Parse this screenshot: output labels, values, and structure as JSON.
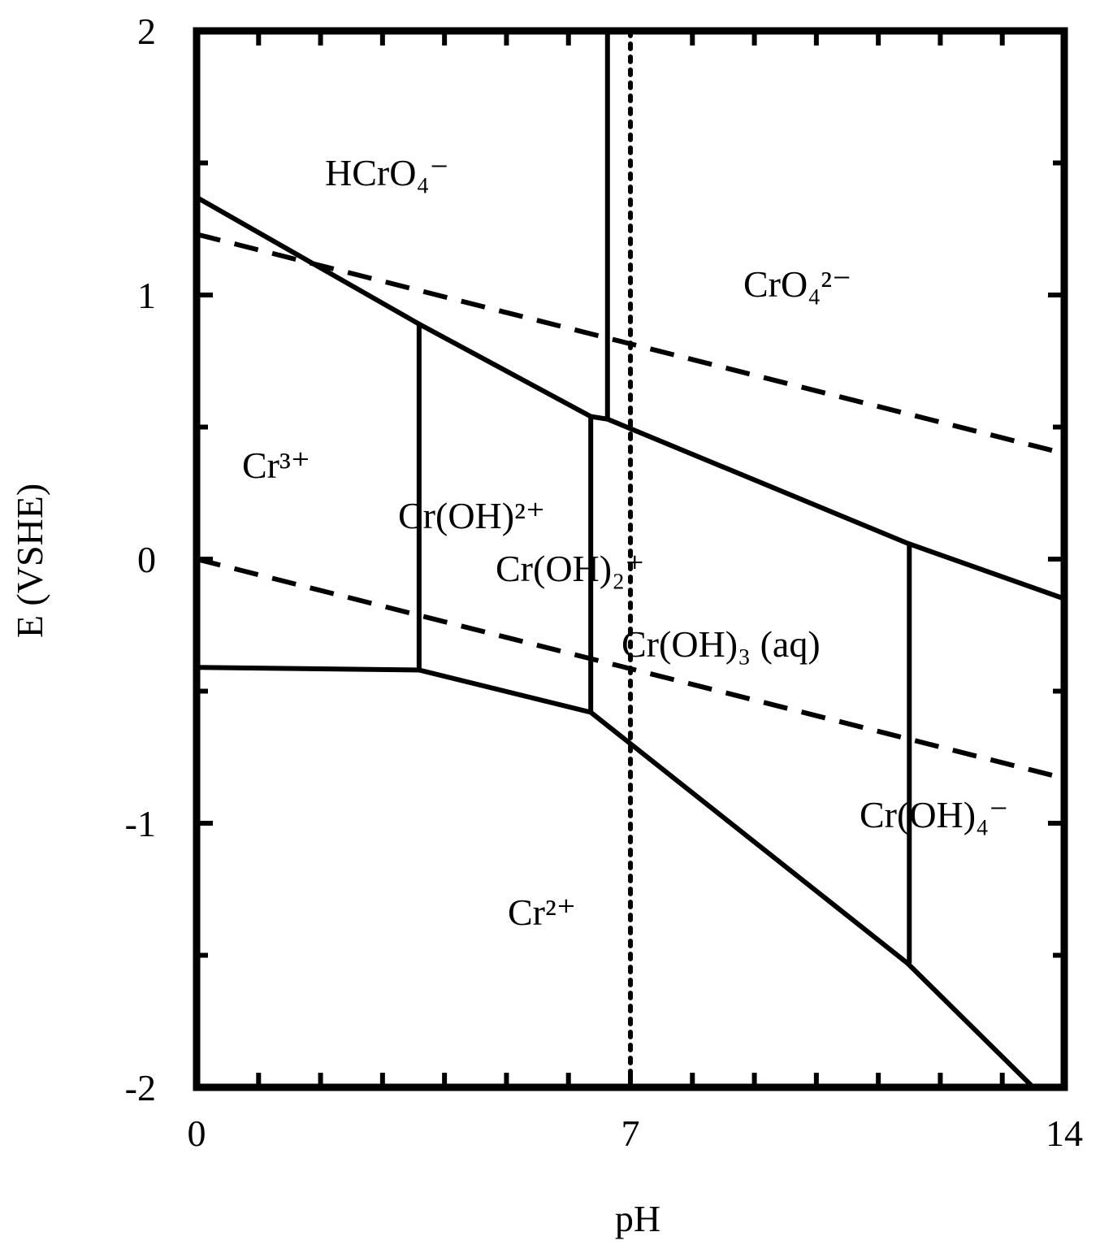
{
  "chart_data": {
    "type": "line",
    "xlabel": "pH",
    "ylabel": "E (VSHE)",
    "xlim": [
      0,
      14
    ],
    "ylim": [
      -2,
      2
    ],
    "xticks": [
      0,
      7,
      14
    ],
    "yticks": [
      -2,
      -1,
      0,
      1,
      2
    ],
    "xticks_minor": [
      1,
      2,
      3,
      4,
      5,
      6,
      8,
      9,
      10,
      11,
      12,
      13
    ],
    "yticks_minor": [
      -1.5,
      -0.5,
      0.5,
      1.5
    ],
    "grid": false,
    "series": [
      {
        "color": "#000000",
        "style": "solid",
        "x": [
          0,
          3.59,
          6.36,
          6.63,
          11.47,
          14
        ],
        "values": [
          1.37,
          0.89,
          0.54,
          0.53,
          0.06,
          -0.15
        ]
      },
      {
        "color": "#000000",
        "style": "solid",
        "x": [
          6.63,
          6.63
        ],
        "values": [
          2,
          0.53
        ]
      },
      {
        "color": "#000000",
        "style": "solid",
        "x": [
          3.59,
          3.59
        ],
        "values": [
          0.89,
          -0.42
        ]
      },
      {
        "color": "#000000",
        "style": "solid",
        "x": [
          6.36,
          6.36
        ],
        "values": [
          0.54,
          -0.58
        ]
      },
      {
        "color": "#000000",
        "style": "solid",
        "x": [
          11.5,
          11.5
        ],
        "values": [
          0.06,
          -1.53
        ]
      },
      {
        "color": "#000000",
        "style": "solid",
        "x": [
          0,
          3.59,
          6.36,
          11.47,
          13.5
        ],
        "values": [
          -0.41,
          -0.42,
          -0.58,
          -1.53,
          -2
        ]
      },
      {
        "color": "#000000",
        "style": "dashed",
        "x": [
          0,
          14
        ],
        "values": [
          1.23,
          0.4
        ]
      },
      {
        "color": "#000000",
        "style": "dashed",
        "x": [
          0,
          14
        ],
        "values": [
          0,
          -0.83
        ]
      },
      {
        "color": "#000000",
        "style": "dotted",
        "x": [
          7,
          7
        ],
        "values": [
          2,
          -2
        ]
      }
    ],
    "annotations": [
      "HCrO₄⁻",
      "CrO₄²⁻",
      "Cr³⁺",
      "Cr(OH)²⁺",
      "Cr(OH)₂⁺",
      "Cr(OH)₃ (aq)",
      "Cr(OH)₄⁻",
      "Cr²⁺"
    ]
  }
}
